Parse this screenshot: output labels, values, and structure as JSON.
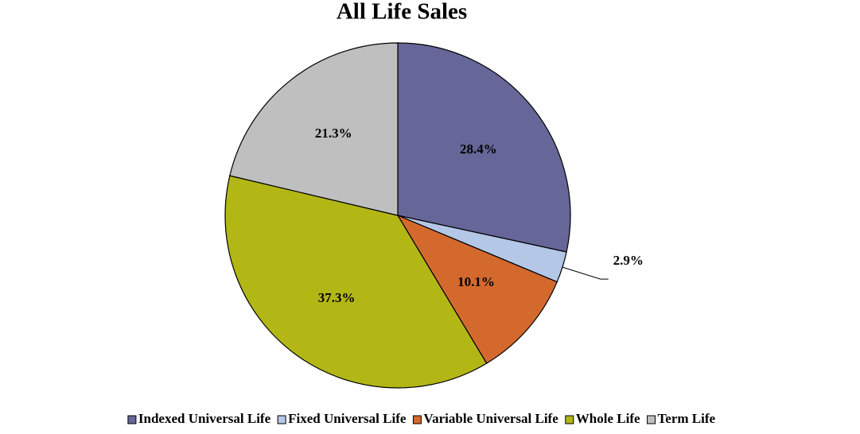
{
  "chart_data": {
    "type": "pie",
    "title": "All Life Sales",
    "categories": [
      "Indexed Universal Life",
      "Fixed Universal Life",
      "Variable Universal Life",
      "Whole Life",
      "Term Life"
    ],
    "values": [
      28.4,
      2.9,
      10.1,
      37.3,
      21.3
    ],
    "value_labels": [
      "28.4%",
      "2.9%",
      "10.1%",
      "37.3%",
      "21.3%"
    ],
    "colors": [
      "#666699",
      "#b4c7e7",
      "#d4692e",
      "#b3b716",
      "#bfbfbf"
    ],
    "legend": "bottom"
  }
}
